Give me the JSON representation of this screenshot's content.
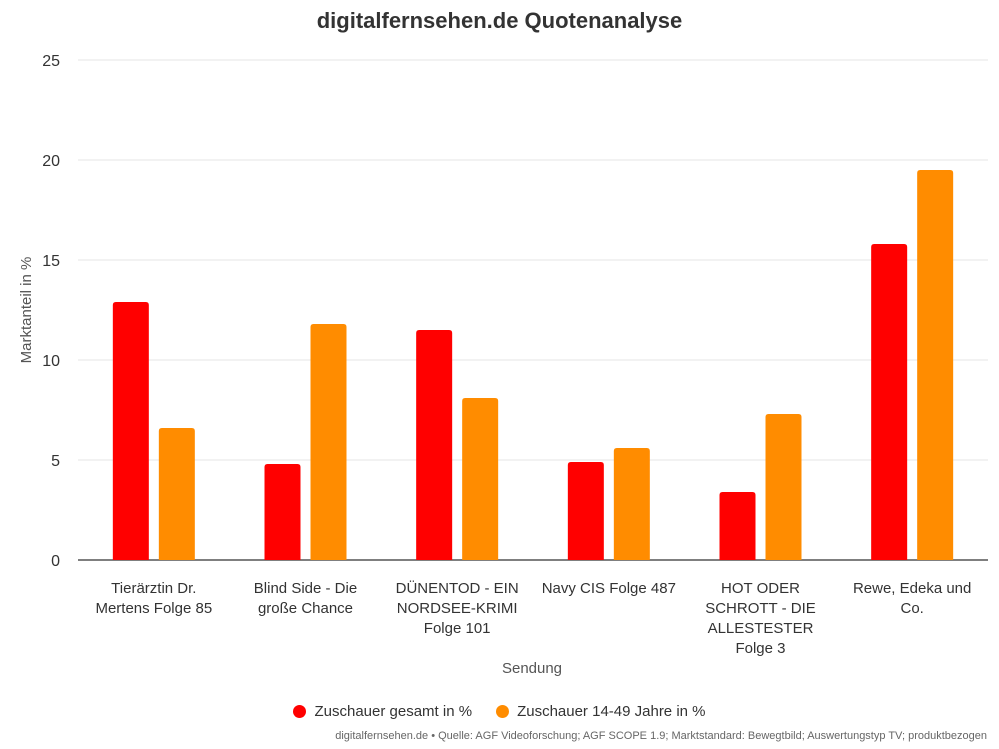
{
  "chart_data": {
    "type": "bar",
    "title": "digitalfernsehen.de Quotenanalyse",
    "xlabel": "Sendung",
    "ylabel": "Marktanteil in %",
    "ylim": [
      0,
      25
    ],
    "yticks": [
      0,
      5,
      10,
      15,
      20,
      25
    ],
    "grid": true,
    "legend_position": "bottom",
    "categories": [
      [
        "Tierärztin Dr.",
        "Mertens Folge 85"
      ],
      [
        "Blind Side - Die",
        "große Chance"
      ],
      [
        "DÜNENTOD - EIN",
        "NORDSEE-KRIMI",
        "Folge 101"
      ],
      [
        "Navy CIS Folge 487"
      ],
      [
        "HOT ODER",
        "SCHROTT - DIE",
        "ALLESTESTER",
        "Folge 3"
      ],
      [
        "Rewe, Edeka und",
        "Co."
      ]
    ],
    "series": [
      {
        "name": "Zuschauer gesamt in %",
        "color": "#ff0000",
        "values": [
          12.9,
          4.8,
          11.5,
          4.9,
          3.4,
          15.8
        ]
      },
      {
        "name": "Zuschauer 14-49 Jahre in %",
        "color": "#ff8c00",
        "values": [
          6.6,
          11.8,
          8.1,
          5.6,
          7.3,
          19.5
        ]
      }
    ],
    "credits": "digitalfernsehen.de • Quelle: AGF Videoforschung; AGF SCOPE 1.9; Marktstandard: Bewegtbild; Auswertungstyp TV; produktbezogen"
  }
}
